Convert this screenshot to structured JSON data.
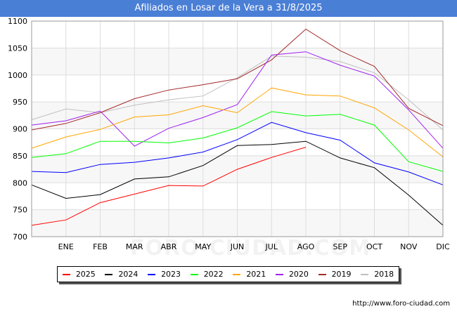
{
  "header": {
    "title": "Afiliados en Losar de la Vera a 31/8/2025"
  },
  "watermark": "FORO-CIUDAD.COM",
  "source": "http://www.foro-ciudad.com",
  "chart_data": {
    "type": "line",
    "title": "Afiliados en Losar de la Vera a 31/8/2025",
    "xlabel": "",
    "ylabel": "",
    "ylim": [
      700,
      1100
    ],
    "yticks": [
      700,
      750,
      800,
      850,
      900,
      950,
      1000,
      1050,
      1100
    ],
    "categories": [
      "",
      "ENE",
      "FEB",
      "MAR",
      "ABR",
      "MAY",
      "JUN",
      "JUL",
      "AGO",
      "SEP",
      "OCT",
      "NOV",
      "DIC"
    ],
    "grid": true,
    "legend_position": "bottom",
    "series": [
      {
        "name": "2025",
        "color": "#ff0000",
        "values": [
          721,
          731,
          763,
          779,
          795,
          794,
          825,
          847,
          866,
          null,
          null,
          null,
          null
        ]
      },
      {
        "name": "2024",
        "color": "#000000",
        "values": [
          796,
          771,
          778,
          807,
          811,
          832,
          869,
          871,
          877,
          846,
          828,
          777,
          721
        ]
      },
      {
        "name": "2023",
        "color": "#0000ff",
        "values": [
          821,
          819,
          834,
          838,
          846,
          857,
          880,
          912,
          893,
          879,
          837,
          820,
          796
        ]
      },
      {
        "name": "2022",
        "color": "#00ff00",
        "values": [
          847,
          854,
          877,
          877,
          874,
          883,
          902,
          932,
          924,
          927,
          907,
          839,
          821
        ]
      },
      {
        "name": "2021",
        "color": "#ffa500",
        "values": [
          864,
          885,
          899,
          922,
          926,
          943,
          930,
          976,
          963,
          961,
          939,
          898,
          848
        ]
      },
      {
        "name": "2020",
        "color": "#a020f0",
        "values": [
          907,
          915,
          933,
          868,
          901,
          921,
          945,
          1037,
          1043,
          1018,
          998,
          935,
          864
        ]
      },
      {
        "name": "2019",
        "color": "#a52a2a",
        "values": [
          898,
          910,
          930,
          956,
          972,
          982,
          993,
          1028,
          1085,
          1045,
          1016,
          938,
          906
        ]
      },
      {
        "name": "2018",
        "color": "#c0c0c0",
        "values": [
          917,
          937,
          930,
          944,
          954,
          961,
          995,
          1035,
          1033,
          1025,
          1004,
          954,
          898
        ]
      }
    ]
  }
}
